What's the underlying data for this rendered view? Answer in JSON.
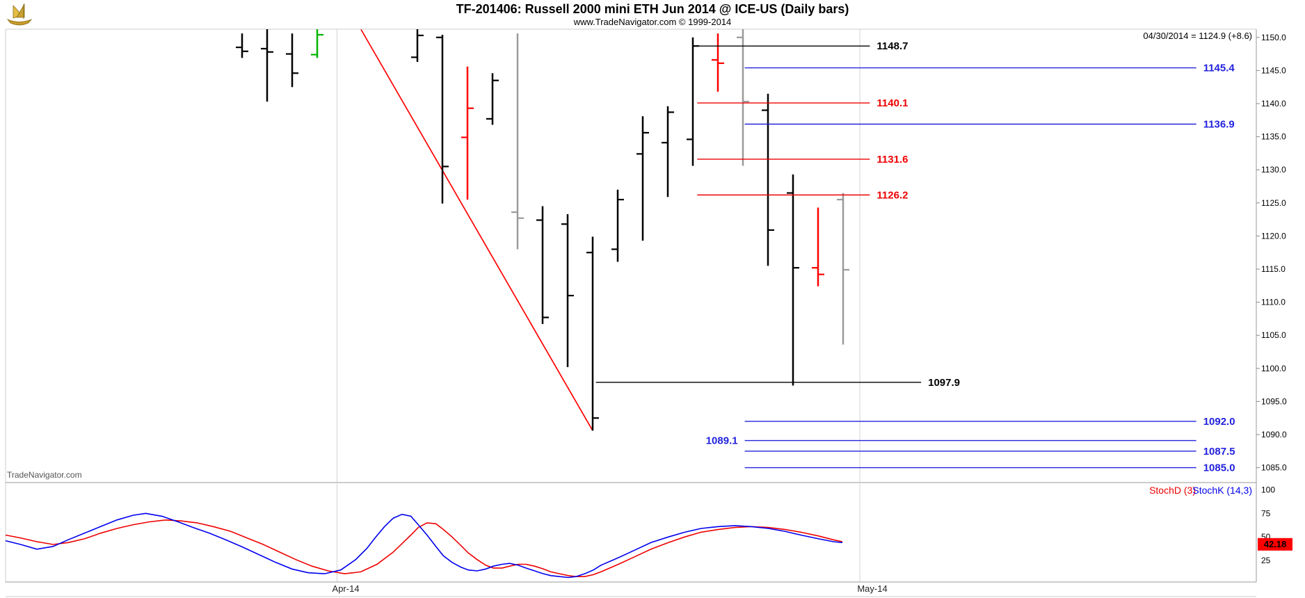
{
  "header": {
    "title": "TF-201406:  Russell 2000 mini ETH Jun 2014 @ ICE-US  (Daily bars)",
    "subtitle": "www.TradeNavigator.com © 1999-2014",
    "quote_line": "04/30/2014 = 1124.9 (+8.6)",
    "logo": "tradenavigator-gold-ship-emblem"
  },
  "watermark": "TradeNavigator.com",
  "colors": {
    "up_bar": "#000000",
    "down_bar": "#ff0000",
    "neutral_bar": "#9a9a9a",
    "green_bar": "#00b400",
    "level_blue": "#2222dd",
    "level_red": "#ee0000",
    "level_black": "#000000",
    "grid": "#d4d4d4",
    "axis_text": "#000000",
    "stoch_d": "#ee0000",
    "stoch_k": "#0000ee",
    "badge_bg": "#ff0000",
    "badge_text": "#000000"
  },
  "chart_data": {
    "type": "ohlc-bar-chart-with-stochastic",
    "instrument": "TF-201406 Russell 2000 mini ETH Jun 2014 @ ICE-US",
    "bar_interval": "Daily bars",
    "price_pane": {
      "y_axis": {
        "min": 1082.5,
        "max": 1151.5,
        "ticks": [
          "1150.0",
          "1145.0",
          "1140.0",
          "1135.0",
          "1130.0",
          "1125.0",
          "1120.0",
          "1115.0",
          "1110.0",
          "1105.0",
          "1100.0",
          "1095.0",
          "1090.0",
          "1085.0"
        ]
      },
      "bars": [
        {
          "slot": 0,
          "high": 1150.6,
          "low": 1146.9,
          "open": 1148.5,
          "close": 1147.9,
          "color": "black"
        },
        {
          "slot": 1,
          "high": 1151.3,
          "low": 1140.3,
          "open": 1148.3,
          "close": 1147.8,
          "color": "black"
        },
        {
          "slot": 2,
          "high": 1150.6,
          "low": 1142.5,
          "open": 1147.5,
          "close": 1144.6,
          "color": "black"
        },
        {
          "slot": 3,
          "high": 1151.3,
          "low": 1146.9,
          "open": 1147.4,
          "close": 1150.4,
          "color": "green"
        },
        {
          "slot": 7,
          "high": 1151.3,
          "low": 1146.3,
          "open": 1147.0,
          "close": 1150.3,
          "color": "black"
        },
        {
          "slot": 8,
          "high": 1150.4,
          "low": 1124.9,
          "open": 1150.0,
          "close": 1130.5,
          "color": "black"
        },
        {
          "slot": 9,
          "high": 1145.6,
          "low": 1125.5,
          "open": 1134.9,
          "close": 1139.3,
          "color": "red"
        },
        {
          "slot": 10,
          "high": 1144.6,
          "low": 1136.8,
          "open": 1137.7,
          "close": 1143.5,
          "color": "black"
        },
        {
          "slot": 11,
          "high": 1150.6,
          "low": 1118.0,
          "open": 1123.6,
          "close": 1122.7,
          "color": "gray"
        },
        {
          "slot": 12,
          "high": 1124.5,
          "low": 1106.7,
          "open": 1122.4,
          "close": 1107.7,
          "color": "black"
        },
        {
          "slot": 13,
          "high": 1123.3,
          "low": 1100.2,
          "open": 1121.8,
          "close": 1111.0,
          "color": "black"
        },
        {
          "slot": 14,
          "high": 1119.9,
          "low": 1090.6,
          "open": 1117.5,
          "close": 1092.5,
          "color": "black"
        },
        {
          "slot": 15,
          "high": 1127.0,
          "low": 1116.1,
          "open": 1118.0,
          "close": 1125.5,
          "color": "black"
        },
        {
          "slot": 16,
          "high": 1138.1,
          "low": 1119.3,
          "open": 1132.4,
          "close": 1135.6,
          "color": "black"
        },
        {
          "slot": 17,
          "high": 1139.6,
          "low": 1125.9,
          "open": 1134.1,
          "close": 1138.7,
          "color": "black"
        },
        {
          "slot": 18,
          "high": 1150.0,
          "low": 1130.6,
          "open": 1134.6,
          "close": 1148.7,
          "color": "black"
        },
        {
          "slot": 19,
          "high": 1150.6,
          "low": 1141.8,
          "open": 1146.6,
          "close": 1146.1,
          "color": "red"
        },
        {
          "slot": 20,
          "high": 1151.3,
          "low": 1130.6,
          "open": 1150.0,
          "close": 1140.3,
          "color": "gray"
        },
        {
          "slot": 21,
          "high": 1141.5,
          "low": 1115.5,
          "open": 1139.0,
          "close": 1120.9,
          "color": "black"
        },
        {
          "slot": 22,
          "high": 1129.3,
          "low": 1097.4,
          "open": 1126.5,
          "close": 1115.2,
          "color": "black"
        },
        {
          "slot": 23,
          "high": 1124.3,
          "low": 1112.4,
          "open": 1115.2,
          "close": 1114.2,
          "color": "red"
        },
        {
          "slot": 24,
          "high": 1126.5,
          "low": 1103.6,
          "open": 1125.5,
          "close": 1114.9,
          "color": "gray"
        }
      ],
      "trendline": {
        "from": {
          "slot": 4.75,
          "price": 1151.2
        },
        "to": {
          "slot": 14.0,
          "price": 1090.6
        },
        "color": "red"
      },
      "levels": [
        {
          "label": "1148.7",
          "price": 1148.7,
          "color": "black",
          "x1": 0.553,
          "x2": 0.691,
          "label_side": "right"
        },
        {
          "label": "1145.4",
          "price": 1145.4,
          "color": "blue",
          "x1": 0.591,
          "x2": 0.952,
          "label_side": "right"
        },
        {
          "label": "1140.1",
          "price": 1140.1,
          "color": "red",
          "x1": 0.553,
          "x2": 0.691,
          "label_side": "right"
        },
        {
          "label": "1136.9",
          "price": 1136.9,
          "color": "blue",
          "x1": 0.591,
          "x2": 0.952,
          "label_side": "right"
        },
        {
          "label": "1131.6",
          "price": 1131.6,
          "color": "red",
          "x1": 0.553,
          "x2": 0.691,
          "label_side": "right"
        },
        {
          "label": "1126.2",
          "price": 1126.2,
          "color": "red",
          "x1": 0.553,
          "x2": 0.691,
          "label_side": "right"
        },
        {
          "label": "1097.9",
          "price": 1097.9,
          "color": "black",
          "x1": 0.472,
          "x2": 0.732,
          "label_side": "right"
        },
        {
          "label": "1092.0",
          "price": 1092.0,
          "color": "blue",
          "x1": 0.591,
          "x2": 0.952,
          "label_side": "right"
        },
        {
          "label": "1089.1",
          "price": 1089.1,
          "color": "blue",
          "x1": 0.591,
          "x2": 0.952,
          "label_side": "left"
        },
        {
          "label": "1087.5",
          "price": 1087.5,
          "color": "blue",
          "x1": 0.591,
          "x2": 0.952,
          "label_side": "right"
        },
        {
          "label": "1085.0",
          "price": 1085.0,
          "color": "blue",
          "x1": 0.591,
          "x2": 0.952,
          "label_side": "right"
        }
      ]
    },
    "stoch_pane": {
      "legend": [
        {
          "label": "StochD (3)",
          "color_key": "stoch_d"
        },
        {
          "label": "StochK (14,3)",
          "color_key": "stoch_k"
        }
      ],
      "y_ticks": [
        "100",
        "75",
        "50",
        "25"
      ],
      "last_value": "42.18",
      "series": [
        {
          "name": "StochD",
          "color_key": "stoch_d",
          "points": [
            [
              0,
              52
            ],
            [
              0.012,
              49
            ],
            [
              0.025,
              45
            ],
            [
              0.038,
              42
            ],
            [
              0.05,
              44
            ],
            [
              0.063,
              48
            ],
            [
              0.076,
              54
            ],
            [
              0.089,
              59
            ],
            [
              0.102,
              63
            ],
            [
              0.115,
              66
            ],
            [
              0.128,
              68
            ],
            [
              0.14,
              67
            ],
            [
              0.153,
              65
            ],
            [
              0.166,
              61
            ],
            [
              0.18,
              56
            ],
            [
              0.193,
              49
            ],
            [
              0.206,
              42
            ],
            [
              0.219,
              34
            ],
            [
              0.232,
              26
            ],
            [
              0.245,
              19
            ],
            [
              0.258,
              14
            ],
            [
              0.271,
              11
            ],
            [
              0.284,
              13
            ],
            [
              0.297,
              21
            ],
            [
              0.31,
              34
            ],
            [
              0.317,
              43
            ],
            [
              0.324,
              52
            ],
            [
              0.33,
              60
            ],
            [
              0.337,
              65
            ],
            [
              0.344,
              64
            ],
            [
              0.35,
              58
            ],
            [
              0.357,
              50
            ],
            [
              0.364,
              41
            ],
            [
              0.37,
              33
            ],
            [
              0.377,
              26
            ],
            [
              0.384,
              20
            ],
            [
              0.39,
              17
            ],
            [
              0.397,
              17
            ],
            [
              0.403,
              19
            ],
            [
              0.41,
              21
            ],
            [
              0.416,
              21
            ],
            [
              0.423,
              19
            ],
            [
              0.43,
              16
            ],
            [
              0.436,
              13
            ],
            [
              0.443,
              11
            ],
            [
              0.45,
              9
            ],
            [
              0.456,
              8
            ],
            [
              0.463,
              8
            ],
            [
              0.47,
              10
            ],
            [
              0.476,
              13
            ],
            [
              0.49,
              21
            ],
            [
              0.503,
              29
            ],
            [
              0.516,
              37
            ],
            [
              0.53,
              44
            ],
            [
              0.543,
              50
            ],
            [
              0.556,
              55
            ],
            [
              0.57,
              58
            ],
            [
              0.583,
              60
            ],
            [
              0.596,
              61
            ],
            [
              0.61,
              60
            ],
            [
              0.623,
              58
            ],
            [
              0.636,
              55
            ],
            [
              0.65,
              51
            ],
            [
              0.662,
              47
            ],
            [
              0.669,
              45
            ]
          ]
        },
        {
          "name": "StochK",
          "color_key": "stoch_k",
          "points": [
            [
              0,
              46
            ],
            [
              0.012,
              42
            ],
            [
              0.025,
              37
            ],
            [
              0.038,
              40
            ],
            [
              0.05,
              47
            ],
            [
              0.063,
              54
            ],
            [
              0.076,
              61
            ],
            [
              0.089,
              68
            ],
            [
              0.102,
              73
            ],
            [
              0.112,
              75
            ],
            [
              0.125,
              72
            ],
            [
              0.138,
              66
            ],
            [
              0.15,
              60
            ],
            [
              0.163,
              54
            ],
            [
              0.176,
              47
            ],
            [
              0.19,
              39
            ],
            [
              0.203,
              31
            ],
            [
              0.216,
              23
            ],
            [
              0.229,
              16
            ],
            [
              0.242,
              12
            ],
            [
              0.255,
              11
            ],
            [
              0.268,
              15
            ],
            [
              0.28,
              26
            ],
            [
              0.289,
              38
            ],
            [
              0.296,
              50
            ],
            [
              0.303,
              61
            ],
            [
              0.31,
              70
            ],
            [
              0.317,
              74
            ],
            [
              0.324,
              72
            ],
            [
              0.33,
              63
            ],
            [
              0.337,
              52
            ],
            [
              0.344,
              40
            ],
            [
              0.35,
              30
            ],
            [
              0.357,
              23
            ],
            [
              0.364,
              18
            ],
            [
              0.37,
              15
            ],
            [
              0.377,
              14
            ],
            [
              0.384,
              16
            ],
            [
              0.39,
              19
            ],
            [
              0.397,
              21
            ],
            [
              0.403,
              22
            ],
            [
              0.41,
              20
            ],
            [
              0.416,
              17
            ],
            [
              0.423,
              14
            ],
            [
              0.43,
              11
            ],
            [
              0.436,
              9
            ],
            [
              0.443,
              8
            ],
            [
              0.45,
              7
            ],
            [
              0.456,
              8
            ],
            [
              0.463,
              11
            ],
            [
              0.47,
              15
            ],
            [
              0.476,
              20
            ],
            [
              0.49,
              28
            ],
            [
              0.503,
              36
            ],
            [
              0.516,
              44
            ],
            [
              0.53,
              50
            ],
            [
              0.543,
              55
            ],
            [
              0.556,
              59
            ],
            [
              0.57,
              61
            ],
            [
              0.583,
              62
            ],
            [
              0.596,
              61
            ],
            [
              0.61,
              59
            ],
            [
              0.623,
              56
            ],
            [
              0.636,
              52
            ],
            [
              0.65,
              48
            ],
            [
              0.662,
              45
            ],
            [
              0.669,
              44
            ]
          ]
        }
      ]
    },
    "x_axis": {
      "labels": [
        {
          "text": "Apr-14",
          "x": 0.272
        },
        {
          "text": "May-14",
          "x": 0.693
        }
      ],
      "gridlines": [
        0.265,
        0.683
      ]
    }
  }
}
